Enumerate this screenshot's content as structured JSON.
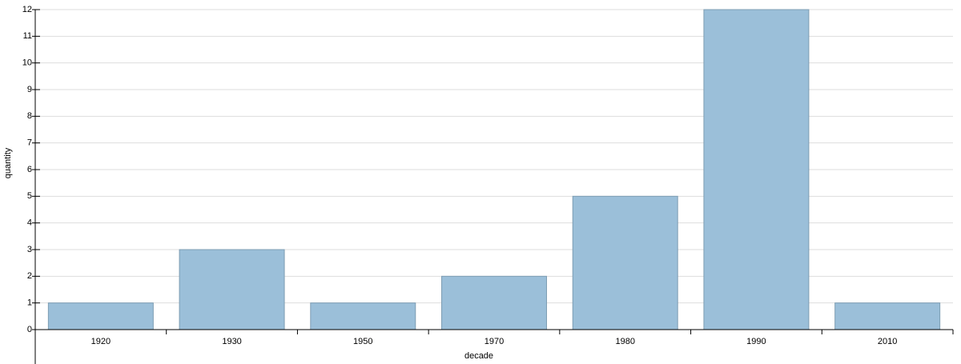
{
  "chart_data": {
    "type": "bar",
    "x_label": "decade",
    "y_label": "quantity",
    "categories": [
      "1920",
      "1930",
      "1950",
      "1970",
      "1980",
      "1990",
      "2010"
    ],
    "values": [
      1,
      3,
      1,
      2,
      5,
      12,
      1
    ],
    "color": "#9bbfd9",
    "ylim": [
      0,
      12
    ],
    "yticks": [
      0,
      1,
      2,
      3,
      4,
      5,
      6,
      7,
      8,
      9,
      10,
      11,
      12
    ],
    "grid": true
  }
}
